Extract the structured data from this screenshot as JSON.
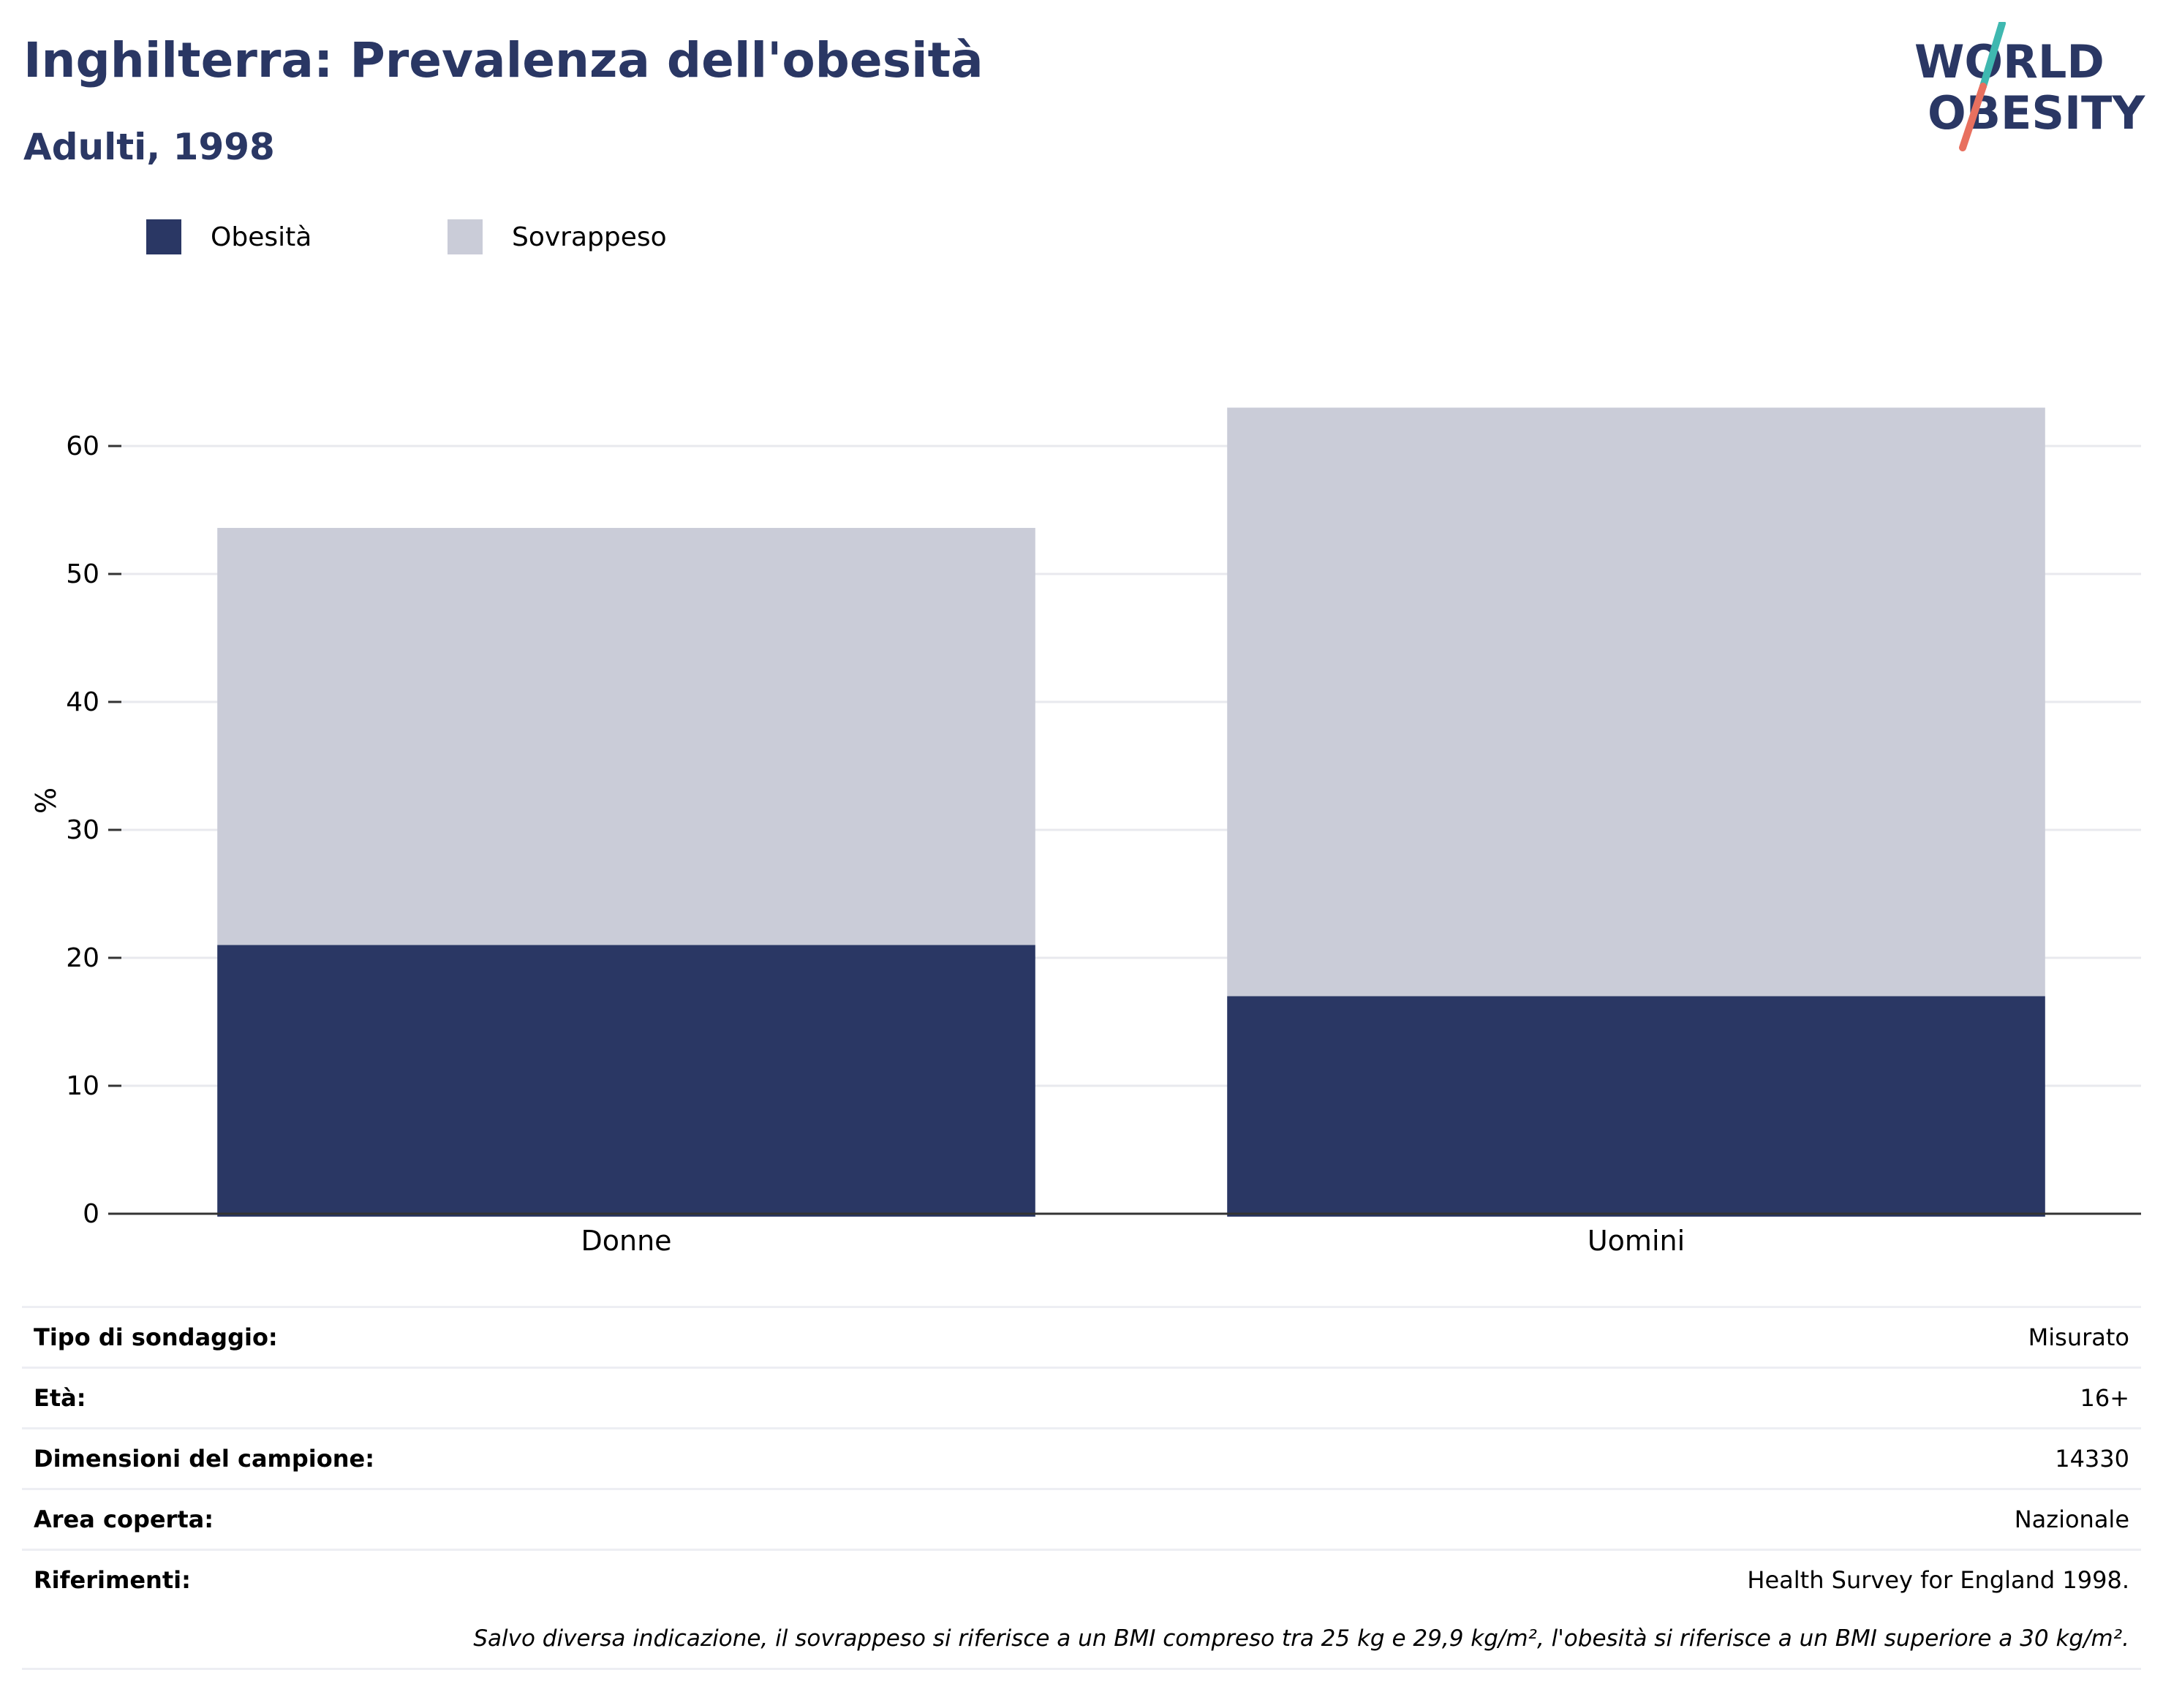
{
  "header": {
    "title": "Inghilterra: Prevalenza dell'obesità",
    "subtitle": "Adulti, 1998"
  },
  "logo": {
    "line1": "WORLD",
    "line2": "OBESITY",
    "colors": {
      "text": "#2a3764",
      "slash_top": "#3fb8b0",
      "slash_bottom": "#e8705f"
    }
  },
  "legend": [
    {
      "label": "Obesità",
      "color": "#2a3764"
    },
    {
      "label": "Sovrappeso",
      "color": "#caccd8"
    }
  ],
  "chart_data": {
    "type": "bar",
    "stacked": true,
    "categories": [
      "Donne",
      "Uomini"
    ],
    "series": [
      {
        "name": "Obesità",
        "values": [
          21,
          17
        ],
        "color": "#2a3764"
      },
      {
        "name": "Sovrappeso",
        "values": [
          32.6,
          46
        ],
        "color": "#caccd8"
      }
    ],
    "ylabel": "%",
    "ylim": [
      0,
      68
    ],
    "yticks": [
      0,
      10,
      20,
      30,
      40,
      50,
      60
    ],
    "grid": true,
    "legend_position": "top-left"
  },
  "info": [
    {
      "key": "Tipo di sondaggio:",
      "value": "Misurato"
    },
    {
      "key": "Età:",
      "value": "16+"
    },
    {
      "key": "Dimensioni del campione:",
      "value": "14330"
    },
    {
      "key": "Area coperta:",
      "value": "Nazionale"
    },
    {
      "key": "Riferimenti:",
      "value": "Health Survey for England 1998."
    }
  ],
  "footnote": "Salvo diversa indicazione, il sovrappeso si riferisce a un BMI compreso tra 25 kg e 29,9 kg/m², l'obesità si riferisce a un BMI superiore a 30 kg/m²."
}
